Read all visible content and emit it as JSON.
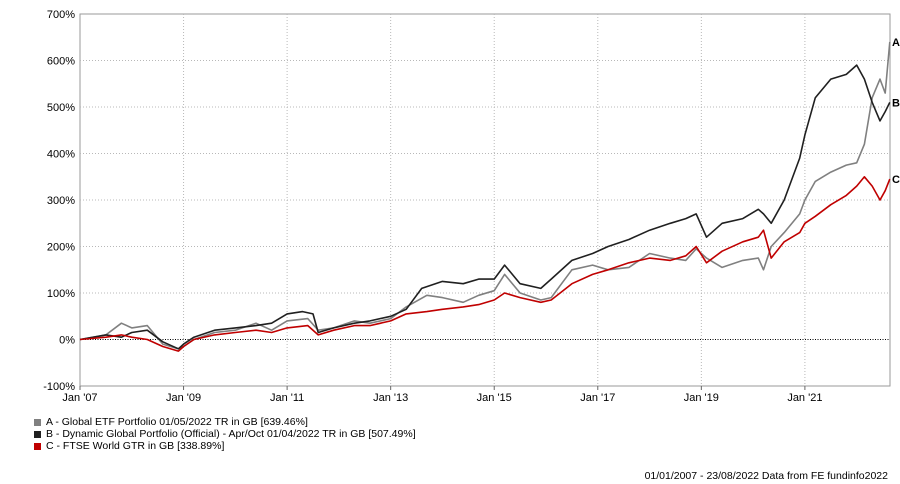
{
  "chart_data": {
    "type": "line",
    "title": "",
    "xlabel": "",
    "ylabel": "",
    "ylim": [
      -100,
      700
    ],
    "y_ticks": [
      "-100%",
      "0%",
      "100%",
      "200%",
      "300%",
      "400%",
      "500%",
      "600%",
      "700%"
    ],
    "x_ticks": [
      "Jan '07",
      "Jan '09",
      "Jan '11",
      "Jan '13",
      "Jan '15",
      "Jan '17",
      "Jan '19",
      "Jan '21"
    ],
    "x_range": [
      "2007-01-01",
      "2022-08-23"
    ],
    "grid": "dotted",
    "series": [
      {
        "label": "A",
        "name": "A - Global ETF Portfolio 01/05/2022 TR in GB [639.46%]",
        "color": "#808080",
        "x": [
          2007.0,
          2007.5,
          2007.8,
          2008.0,
          2008.3,
          2008.6,
          2008.9,
          2009.0,
          2009.2,
          2009.6,
          2010.0,
          2010.4,
          2010.7,
          2011.0,
          2011.4,
          2011.6,
          2011.9,
          2012.3,
          2012.6,
          2013.0,
          2013.3,
          2013.7,
          2014.0,
          2014.4,
          2014.7,
          2015.0,
          2015.2,
          2015.5,
          2015.9,
          2016.1,
          2016.5,
          2016.9,
          2017.2,
          2017.6,
          2018.0,
          2018.4,
          2018.7,
          2018.9,
          2019.1,
          2019.4,
          2019.8,
          2020.1,
          2020.2,
          2020.35,
          2020.6,
          2020.9,
          2021.0,
          2021.2,
          2021.5,
          2021.8,
          2022.0,
          2022.15,
          2022.3,
          2022.45,
          2022.55,
          2022.64
        ],
        "values": [
          0,
          10,
          35,
          25,
          30,
          -10,
          -20,
          -15,
          0,
          15,
          20,
          35,
          20,
          40,
          45,
          20,
          25,
          40,
          35,
          45,
          70,
          95,
          90,
          80,
          95,
          105,
          140,
          100,
          85,
          90,
          150,
          160,
          150,
          155,
          185,
          175,
          170,
          195,
          175,
          155,
          170,
          175,
          150,
          200,
          230,
          270,
          300,
          340,
          360,
          375,
          380,
          420,
          520,
          560,
          530,
          640
        ]
      },
      {
        "label": "B",
        "name": "B - Dynamic Global Portfolio (Official) - Apr/Oct 01/04/2022 TR in GB [507.49%]",
        "color": "#202020",
        "x": [
          2007.0,
          2007.5,
          2007.8,
          2008.0,
          2008.3,
          2008.6,
          2008.9,
          2009.0,
          2009.2,
          2009.6,
          2010.0,
          2010.4,
          2010.7,
          2011.0,
          2011.3,
          2011.5,
          2011.6,
          2011.9,
          2012.3,
          2012.6,
          2013.0,
          2013.3,
          2013.6,
          2014.0,
          2014.4,
          2014.7,
          2015.0,
          2015.2,
          2015.5,
          2015.9,
          2016.1,
          2016.5,
          2016.9,
          2017.2,
          2017.6,
          2018.0,
          2018.4,
          2018.7,
          2018.9,
          2019.1,
          2019.4,
          2019.8,
          2020.1,
          2020.2,
          2020.35,
          2020.6,
          2020.9,
          2021.0,
          2021.2,
          2021.5,
          2021.8,
          2022.0,
          2022.15,
          2022.3,
          2022.45,
          2022.55,
          2022.64
        ],
        "values": [
          0,
          10,
          5,
          15,
          20,
          -5,
          -20,
          -10,
          5,
          20,
          25,
          30,
          35,
          55,
          60,
          55,
          15,
          25,
          35,
          40,
          50,
          65,
          110,
          125,
          120,
          130,
          130,
          160,
          120,
          110,
          130,
          170,
          185,
          200,
          215,
          235,
          250,
          260,
          270,
          220,
          250,
          260,
          280,
          270,
          250,
          300,
          390,
          440,
          520,
          560,
          570,
          590,
          560,
          510,
          470,
          490,
          510
        ]
      },
      {
        "label": "C",
        "name": "C - FTSE World GTR in GB [338.89%]",
        "color": "#c00000",
        "x": [
          2007.0,
          2007.5,
          2007.8,
          2008.0,
          2008.3,
          2008.6,
          2008.9,
          2009.0,
          2009.2,
          2009.6,
          2010.0,
          2010.4,
          2010.7,
          2011.0,
          2011.4,
          2011.6,
          2011.9,
          2012.3,
          2012.6,
          2013.0,
          2013.3,
          2013.7,
          2014.0,
          2014.4,
          2014.7,
          2015.0,
          2015.2,
          2015.5,
          2015.9,
          2016.1,
          2016.5,
          2016.9,
          2017.2,
          2017.6,
          2018.0,
          2018.4,
          2018.7,
          2018.9,
          2019.1,
          2019.4,
          2019.8,
          2020.1,
          2020.2,
          2020.35,
          2020.6,
          2020.9,
          2021.0,
          2021.2,
          2021.5,
          2021.8,
          2022.0,
          2022.15,
          2022.3,
          2022.45,
          2022.55,
          2022.64
        ],
        "values": [
          0,
          5,
          10,
          5,
          0,
          -15,
          -25,
          -15,
          0,
          10,
          15,
          20,
          15,
          25,
          30,
          10,
          20,
          30,
          30,
          40,
          55,
          60,
          65,
          70,
          75,
          85,
          100,
          90,
          80,
          85,
          120,
          140,
          150,
          165,
          175,
          170,
          180,
          200,
          165,
          190,
          210,
          220,
          235,
          175,
          210,
          230,
          250,
          265,
          290,
          310,
          330,
          350,
          330,
          300,
          320,
          345
        ]
      }
    ]
  },
  "legend": {
    "a": "A - Global ETF Portfolio 01/05/2022 TR in GB [639.46%]",
    "b": "B - Dynamic Global Portfolio (Official) - Apr/Oct 01/04/2022 TR in GB [507.49%]",
    "c": "C - FTSE World GTR in GB [338.89%]"
  },
  "footer": "01/01/2007 - 23/08/2022 Data from FE fundinfo2022"
}
